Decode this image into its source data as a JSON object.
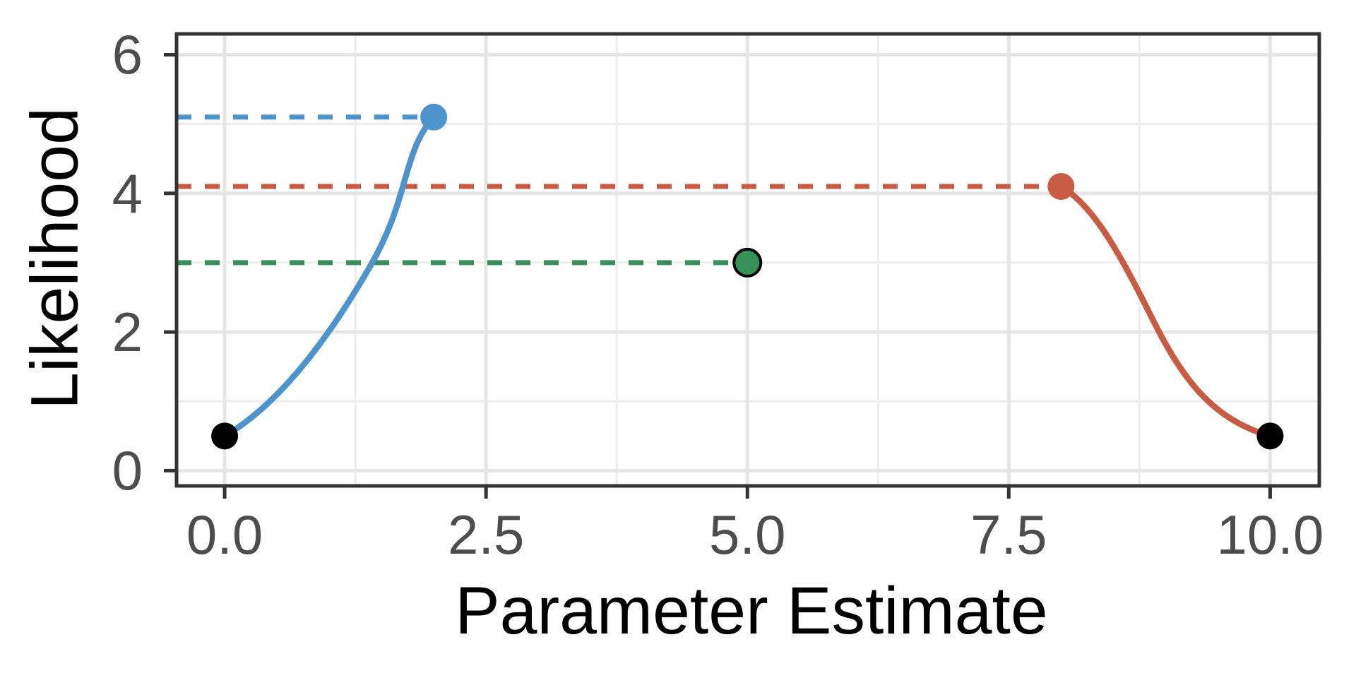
{
  "chart_data": {
    "type": "line",
    "title": "",
    "xlabel": "Parameter Estimate",
    "ylabel": "Likelihood",
    "xlim": [
      -0.46,
      10.47
    ],
    "ylim": [
      -0.22,
      6.3
    ],
    "x_ticks": [
      0,
      2.5,
      5,
      7.5,
      10
    ],
    "x_tick_labels": [
      "0.0",
      "2.5",
      "5.0",
      "7.5",
      "10.0"
    ],
    "y_ticks": [
      0,
      2,
      4,
      6
    ],
    "y_tick_labels": [
      "0",
      "2",
      "4",
      "6"
    ],
    "x_minor_gridlines": [
      1.25,
      3.75,
      6.25,
      8.75
    ],
    "y_minor_gridlines": [
      1,
      3,
      5
    ],
    "grid": "on",
    "legend": "none",
    "guides": [
      {
        "name": "blue-dashed-guide",
        "y": 5.1,
        "x_from": -0.46,
        "x_to": 2,
        "color": "#4f93cd",
        "style": "dashed"
      },
      {
        "name": "red-dashed-guide",
        "y": 4.1,
        "x_from": -0.46,
        "x_to": 8,
        "color": "#c75b44",
        "style": "dashed"
      },
      {
        "name": "green-dashed-guide",
        "y": 3.0,
        "x_from": -0.46,
        "x_to": 5,
        "color": "#37905a",
        "style": "dashed"
      }
    ],
    "curves": [
      {
        "name": "rising-likelihood-curve",
        "color": "#4f93cd",
        "from": {
          "x": 0,
          "y": 0.5
        },
        "to": {
          "x": 2,
          "y": 5.1
        },
        "bezier": [
          [
            0,
            0.5
          ],
          [
            0.55,
            0.98
          ],
          [
            1.03,
            2.0
          ],
          [
            1.4,
            2.97
          ],
          [
            1.77,
            3.94
          ],
          [
            1.7,
            4.6
          ],
          [
            2,
            5.1
          ]
        ]
      },
      {
        "name": "falling-likelihood-curve",
        "color": "#c75b44",
        "from": {
          "x": 8,
          "y": 4.1
        },
        "to": {
          "x": 10,
          "y": 0.5
        },
        "bezier": [
          [
            8,
            4.1
          ],
          [
            8.29,
            3.84
          ],
          [
            8.53,
            3.22
          ],
          [
            8.8,
            2.41
          ],
          [
            9.07,
            1.59
          ],
          [
            9.34,
            0.78
          ],
          [
            10,
            0.5
          ]
        ]
      }
    ],
    "points": [
      {
        "x": 0,
        "y": 0.5,
        "color": "#000000",
        "outline": null
      },
      {
        "x": 2,
        "y": 5.1,
        "color": "#4f93cd",
        "outline": null
      },
      {
        "x": 5,
        "y": 3.0,
        "color": "#37905a",
        "outline": "#000000"
      },
      {
        "x": 8,
        "y": 4.1,
        "color": "#c75b44",
        "outline": null
      },
      {
        "x": 10,
        "y": 0.5,
        "color": "#000000",
        "outline": null
      }
    ]
  },
  "style": {
    "background": "#ffffff",
    "panel_border": "#333333",
    "grid_major": "#e6e6e6",
    "grid_minor": "#ededed",
    "tick_mark": "#333333",
    "tick_label": "#4d4d4d",
    "axis_title": "#000000"
  }
}
